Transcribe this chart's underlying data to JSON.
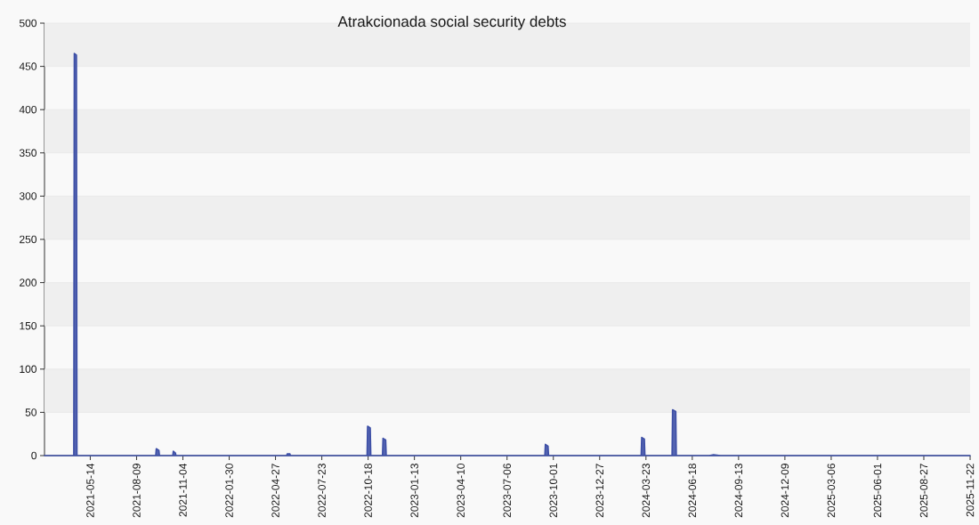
{
  "chart_data": {
    "type": "area",
    "title": "Atrakcionada social security debts",
    "x": [
      "2021-02-17",
      "2021-04-13",
      "2021-04-14",
      "2021-04-18",
      "2021-04-19",
      "2021-09-14",
      "2021-09-15",
      "2021-09-20",
      "2021-09-21",
      "2021-10-16",
      "2021-10-17",
      "2021-10-21",
      "2021-10-22",
      "2022-05-18",
      "2022-05-19",
      "2022-05-24",
      "2022-05-25",
      "2022-10-16",
      "2022-10-17",
      "2022-10-22",
      "2022-10-23",
      "2022-11-14",
      "2022-11-15",
      "2022-11-20",
      "2022-11-21",
      "2023-09-15",
      "2023-09-16",
      "2023-09-21",
      "2023-09-22",
      "2024-03-14",
      "2024-03-15",
      "2024-03-20",
      "2024-03-21",
      "2024-05-11",
      "2024-05-12",
      "2024-05-18",
      "2024-05-19",
      "2024-07-20",
      "2024-07-28",
      "2024-08-10",
      "2025-11-22"
    ],
    "values": [
      0,
      0,
      465,
      463,
      0,
      0,
      8,
      6,
      0,
      0,
      5,
      3,
      0,
      0,
      2,
      2,
      0,
      0,
      34,
      32,
      0,
      0,
      20,
      18,
      0,
      0,
      13,
      11,
      0,
      0,
      21,
      19,
      0,
      0,
      53,
      51,
      0,
      0,
      1,
      0,
      0
    ],
    "color": "#3d4fa6",
    "xlim": [
      "2021-02-17",
      "2025-11-22"
    ],
    "xticks": [
      "2021-05-14",
      "2021-08-09",
      "2021-11-04",
      "2022-01-30",
      "2022-04-27",
      "2022-07-23",
      "2022-10-18",
      "2023-01-13",
      "2023-04-10",
      "2023-07-06",
      "2023-10-01",
      "2023-12-27",
      "2024-03-23",
      "2024-06-18",
      "2024-09-13",
      "2024-12-09",
      "2025-03-06",
      "2025-06-01",
      "2025-08-27",
      "2025-11-22"
    ],
    "ylim": [
      0,
      500
    ],
    "yticks": [
      0,
      50,
      100,
      150,
      200,
      250,
      300,
      350,
      400,
      450,
      500
    ],
    "grid": "y"
  }
}
